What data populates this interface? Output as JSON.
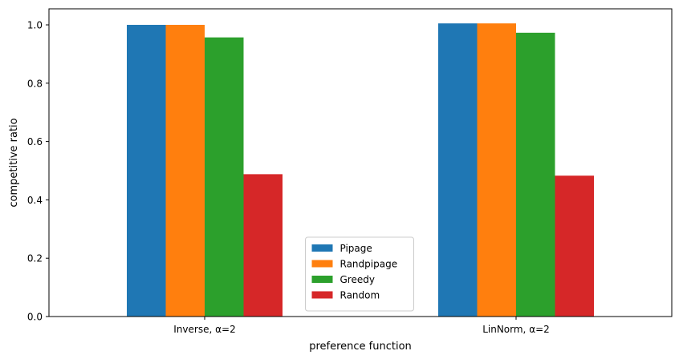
{
  "chart_data": {
    "type": "bar",
    "title": "",
    "xlabel": "preference function",
    "ylabel": "competitive ratio",
    "categories": [
      "Inverse, α=2",
      "LinNorm, α=2"
    ],
    "series": [
      {
        "name": "Pipage",
        "values": [
          1.0,
          1.005
        ],
        "color": "#1f77b4"
      },
      {
        "name": "Randpipage",
        "values": [
          1.0,
          1.005
        ],
        "color": "#ff7f0e"
      },
      {
        "name": "Greedy",
        "values": [
          0.957,
          0.973
        ],
        "color": "#2ca02c"
      },
      {
        "name": "Random",
        "values": [
          0.488,
          0.483
        ],
        "color": "#d62728"
      }
    ],
    "ylim": [
      0,
      1.055
    ],
    "yticks": [
      0.0,
      0.2,
      0.4,
      0.6,
      0.8,
      1.0
    ],
    "ytick_labels": [
      "0.0",
      "0.2",
      "0.4",
      "0.6",
      "0.8",
      "1.0"
    ],
    "grid": false,
    "legend_position": "lower center"
  }
}
